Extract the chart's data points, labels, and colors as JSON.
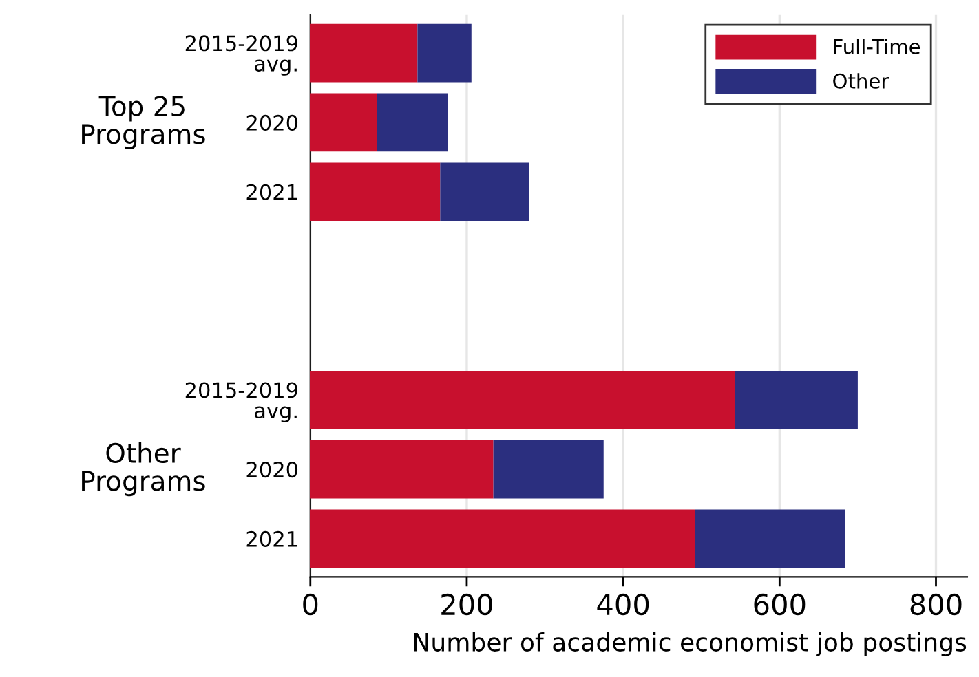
{
  "chart_data": {
    "type": "bar",
    "orientation": "horizontal",
    "stacked": true,
    "xlabel": "Number of academic economist job postings",
    "categories": [
      "2015-2019\navg.",
      "2020",
      "2021",
      null,
      null,
      "2015-2019\navg.",
      "2020",
      "2021"
    ],
    "series": [
      {
        "name": "Full-Time",
        "color": "#c8102e",
        "values": [
          137,
          85,
          166,
          null,
          null,
          543,
          234,
          492
        ]
      },
      {
        "name": "Other",
        "color": "#2b2f7f",
        "values": [
          69,
          91,
          114,
          null,
          null,
          157,
          141,
          192
        ]
      }
    ],
    "annotations": [
      "Top 25\nPrograms",
      "Other\nPrograms"
    ],
    "xlim": [
      0,
      840
    ],
    "xticks": [
      0,
      200,
      400,
      600,
      800
    ],
    "grid": "x",
    "legend": "top right"
  }
}
